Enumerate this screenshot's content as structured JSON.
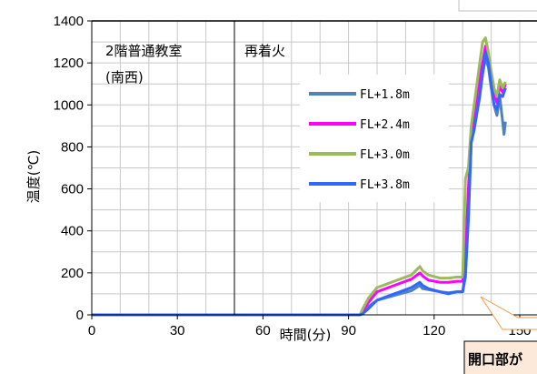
{
  "chart_data": {
    "type": "line",
    "xlabel": "時間(分)",
    "ylabel": "温度(℃)",
    "xlim": [
      0,
      150
    ],
    "ylim": [
      0,
      1400
    ],
    "xticks": [
      0,
      30,
      60,
      90,
      120,
      150
    ],
    "yticks": [
      0,
      200,
      400,
      600,
      800,
      1000,
      1200,
      1400
    ],
    "grid": true,
    "legend_position": "center-right",
    "annotations": {
      "room_line1": "2階普通教室",
      "room_line2": "(南西)",
      "reignition": "再着火",
      "reignition_x": 50,
      "callout": "開口部が"
    },
    "series": [
      {
        "name": "FL+1.8m",
        "color": "#4f81bd",
        "points": [
          [
            0,
            0
          ],
          [
            94,
            0
          ],
          [
            95,
            10
          ],
          [
            97,
            40
          ],
          [
            100,
            70
          ],
          [
            104,
            85
          ],
          [
            108,
            100
          ],
          [
            112,
            115
          ],
          [
            115,
            140
          ],
          [
            116,
            125
          ],
          [
            118,
            120
          ],
          [
            122,
            110
          ],
          [
            125,
            105
          ],
          [
            128,
            110
          ],
          [
            130,
            110
          ],
          [
            131,
            180
          ],
          [
            132,
            500
          ],
          [
            133,
            820
          ],
          [
            134,
            900
          ],
          [
            135,
            1000
          ],
          [
            136,
            1050
          ],
          [
            137,
            1150
          ],
          [
            138,
            1220
          ],
          [
            139,
            1180
          ],
          [
            140,
            1080
          ],
          [
            141,
            1000
          ],
          [
            142,
            950
          ],
          [
            143,
            1040
          ],
          [
            144,
            920
          ],
          [
            144.5,
            860
          ],
          [
            145,
            920
          ]
        ]
      },
      {
        "name": "FL+2.4m",
        "color": "#ff00ff",
        "points": [
          [
            0,
            0
          ],
          [
            94,
            0
          ],
          [
            95,
            20
          ],
          [
            97,
            60
          ],
          [
            100,
            110
          ],
          [
            104,
            130
          ],
          [
            108,
            150
          ],
          [
            112,
            170
          ],
          [
            115,
            200
          ],
          [
            116,
            185
          ],
          [
            118,
            165
          ],
          [
            122,
            155
          ],
          [
            125,
            155
          ],
          [
            128,
            160
          ],
          [
            130,
            160
          ],
          [
            131,
            300
          ],
          [
            132,
            600
          ],
          [
            133,
            880
          ],
          [
            134,
            960
          ],
          [
            135,
            1050
          ],
          [
            136,
            1130
          ],
          [
            137,
            1200
          ],
          [
            138,
            1280
          ],
          [
            139,
            1230
          ],
          [
            140,
            1140
          ],
          [
            141,
            1060
          ],
          [
            142,
            1010
          ],
          [
            143,
            1090
          ],
          [
            144,
            1060
          ],
          [
            145,
            1100
          ]
        ]
      },
      {
        "name": "FL+3.0m",
        "color": "#9bbb59",
        "points": [
          [
            0,
            0
          ],
          [
            94,
            0
          ],
          [
            95,
            30
          ],
          [
            97,
            80
          ],
          [
            100,
            130
          ],
          [
            104,
            150
          ],
          [
            108,
            170
          ],
          [
            112,
            190
          ],
          [
            115,
            230
          ],
          [
            116,
            210
          ],
          [
            118,
            190
          ],
          [
            122,
            175
          ],
          [
            125,
            175
          ],
          [
            128,
            180
          ],
          [
            130,
            180
          ],
          [
            131,
            650
          ],
          [
            132,
            700
          ],
          [
            133,
            900
          ],
          [
            134,
            1000
          ],
          [
            135,
            1100
          ],
          [
            136,
            1200
          ],
          [
            137,
            1300
          ],
          [
            138,
            1320
          ],
          [
            139,
            1250
          ],
          [
            140,
            1160
          ],
          [
            141,
            1080
          ],
          [
            142,
            1040
          ],
          [
            143,
            1120
          ],
          [
            144,
            1080
          ],
          [
            145,
            1110
          ]
        ]
      },
      {
        "name": "FL+3.8m",
        "color": "#3366ff",
        "points": [
          [
            0,
            0
          ],
          [
            94,
            0
          ],
          [
            95,
            5
          ],
          [
            97,
            30
          ],
          [
            100,
            70
          ],
          [
            104,
            90
          ],
          [
            108,
            110
          ],
          [
            112,
            130
          ],
          [
            115,
            155
          ],
          [
            116,
            140
          ],
          [
            118,
            125
          ],
          [
            122,
            110
          ],
          [
            125,
            100
          ],
          [
            128,
            110
          ],
          [
            130,
            110
          ],
          [
            131,
            200
          ],
          [
            132,
            450
          ],
          [
            133,
            820
          ],
          [
            134,
            880
          ],
          [
            135,
            960
          ],
          [
            136,
            1040
          ],
          [
            137,
            1150
          ],
          [
            138,
            1250
          ],
          [
            139,
            1200
          ],
          [
            140,
            1100
          ],
          [
            141,
            1000
          ],
          [
            142,
            980
          ],
          [
            143,
            1050
          ],
          [
            144,
            1040
          ],
          [
            145,
            1080
          ]
        ]
      }
    ]
  }
}
